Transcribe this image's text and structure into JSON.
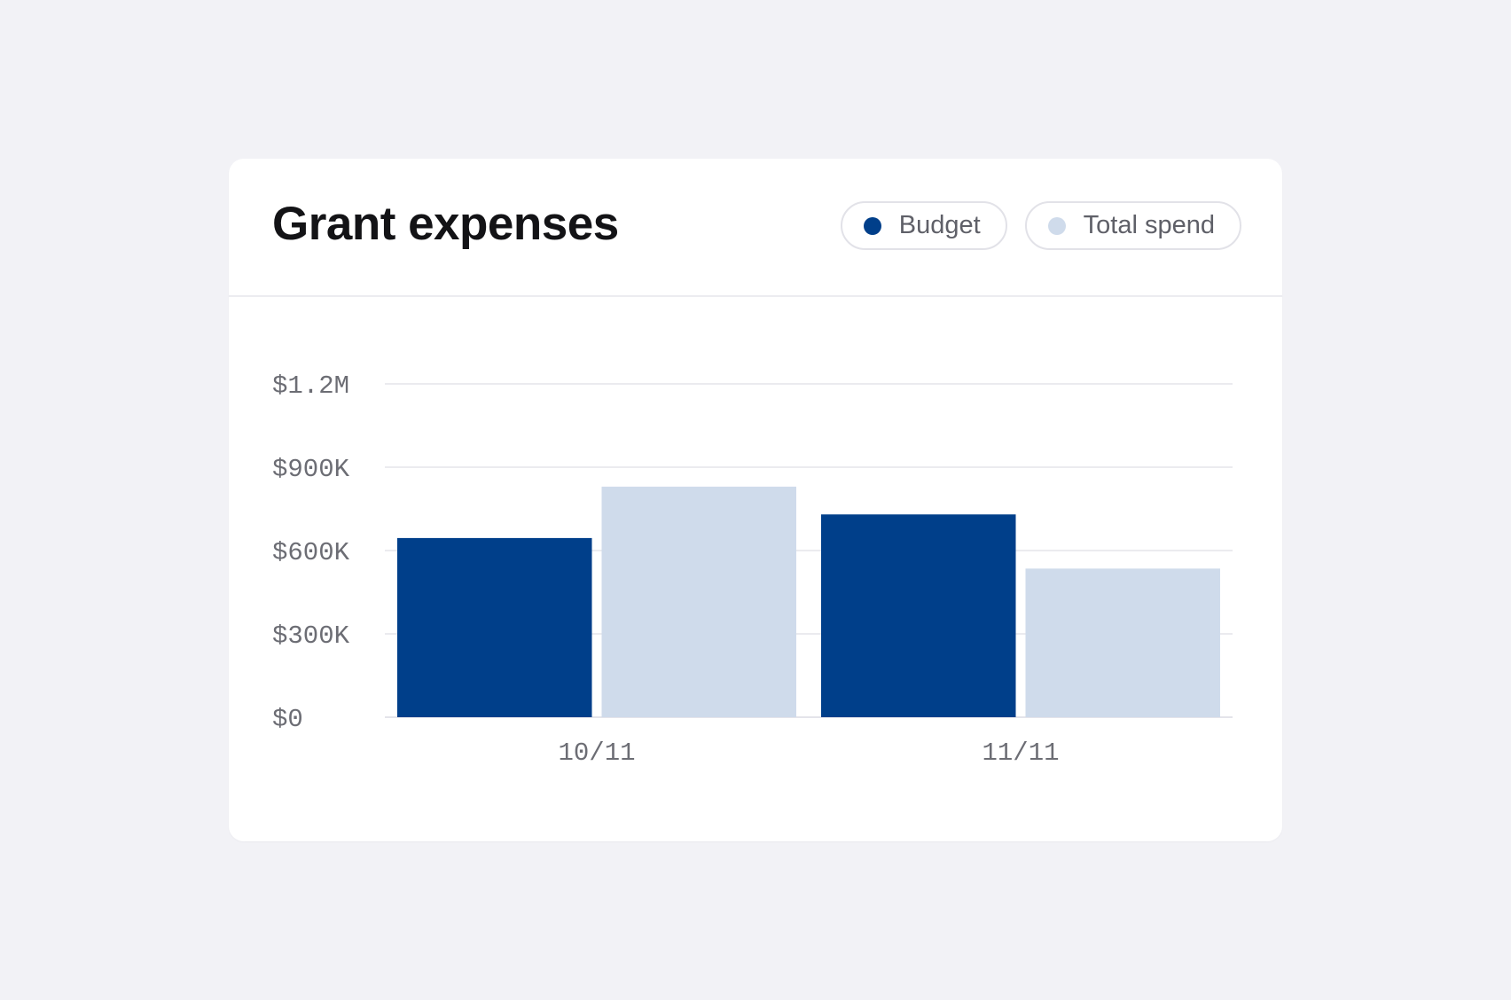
{
  "card": {
    "title": "Grant expenses"
  },
  "legend": [
    {
      "label": "Budget",
      "color": "#003f8a"
    },
    {
      "label": "Total spend",
      "color": "#cfdbeb"
    }
  ],
  "chart_data": {
    "type": "bar",
    "categories": [
      "10/11",
      "11/11"
    ],
    "series": [
      {
        "name": "Budget",
        "color": "#003f8a",
        "values": [
          645000,
          730000
        ]
      },
      {
        "name": "Total spend",
        "color": "#cfdbeb",
        "values": [
          830000,
          535000
        ]
      }
    ],
    "yticks": [
      0,
      300000,
      600000,
      900000,
      1200000
    ],
    "ytick_labels": [
      "$0",
      "$300K",
      "$600K",
      "$900K",
      "$1.2M"
    ],
    "ylim": [
      0,
      1200000
    ],
    "grid": true,
    "legend_position": "top-right",
    "title": "Grant expenses",
    "xlabel": "",
    "ylabel": ""
  }
}
